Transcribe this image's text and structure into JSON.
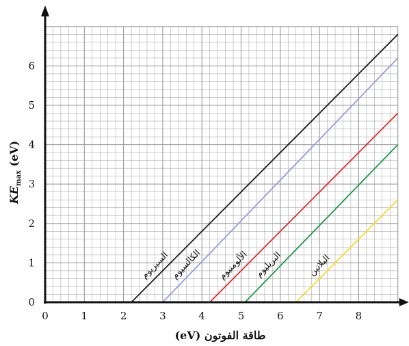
{
  "chart_data": {
    "type": "line",
    "xlabel": "طاقة الفوتون (eV)",
    "ylabel": {
      "main": "KE",
      "sub": "max",
      "unit": " (eV)"
    },
    "xlim": [
      0,
      9
    ],
    "ylim": [
      0,
      7
    ],
    "x_ticks": [
      "0",
      "1",
      "2",
      "3",
      "4",
      "5",
      "6",
      "7",
      "8"
    ],
    "y_ticks": [
      "0",
      "1",
      "2",
      "3",
      "4",
      "5",
      "6"
    ],
    "grid": true,
    "grid_color": "#9a9a9a",
    "series": [
      {
        "name": "السيزيوم",
        "color": "#1a1a1a",
        "x": [
          2.2,
          9.0
        ],
        "y": [
          0,
          6.8
        ]
      },
      {
        "name": "الكالسيوم",
        "color": "#9a9ae0",
        "x": [
          3.0,
          9.0
        ],
        "y": [
          0,
          6.2
        ]
      },
      {
        "name": "الألومنيوم",
        "color": "#e02a2a",
        "x": [
          4.2,
          9.0
        ],
        "y": [
          0,
          4.8
        ]
      },
      {
        "name": "البريليوم",
        "color": "#1a9a4a",
        "x": [
          5.1,
          9.0
        ],
        "y": [
          0,
          4.0
        ]
      },
      {
        "name": "البلاتين",
        "color": "#f2dc2a",
        "x": [
          6.4,
          9.0
        ],
        "y": [
          0,
          2.6
        ]
      }
    ]
  }
}
